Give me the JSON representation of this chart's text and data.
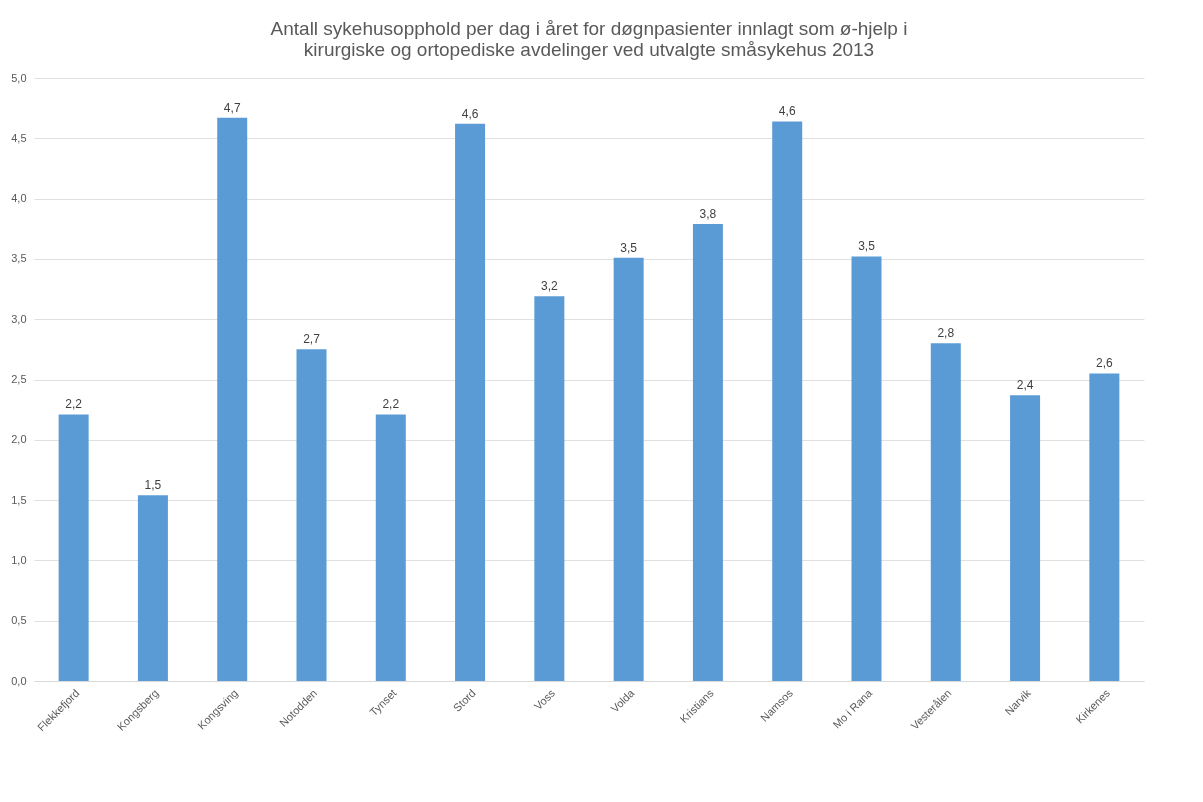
{
  "chart_data": {
    "type": "bar",
    "title": "Antall sykehusopphold  per dag i året for døgnpasienter innlagt som ø-hjelp i kirurgiske og ortopediske avdelinger ved utvalgte småsykehus 2013",
    "categories": [
      "Flekkefjord",
      "Kongsberg",
      "Kongsving",
      "Notodden",
      "Tynset",
      "Stord",
      "Voss",
      "Volda",
      "Kristians",
      "Namsos",
      "Mo i Rana",
      "Vesterålen",
      "Narvik",
      "Kirkenes"
    ],
    "values": [
      2.21,
      1.54,
      4.67,
      2.75,
      2.21,
      4.62,
      3.19,
      3.51,
      3.79,
      4.64,
      3.52,
      2.8,
      2.37,
      2.55
    ],
    "value_labels": [
      "2,2",
      "1,5",
      "4,7",
      "2,7",
      "2,2",
      "4,6",
      "3,2",
      "3,5",
      "3,8",
      "4,6",
      "3,5",
      "2,8",
      "2,4",
      "2,6"
    ],
    "color": "#5b9bd5",
    "ylim": [
      0,
      5
    ],
    "yticks": [
      {
        "value": 0,
        "label": "0,0"
      },
      {
        "value": 0.5,
        "label": "0,5"
      },
      {
        "value": 1,
        "label": "1,0"
      },
      {
        "value": 1.5,
        "label": "1,5"
      },
      {
        "value": 2,
        "label": "2,0"
      },
      {
        "value": 2.5,
        "label": "2,5"
      },
      {
        "value": 3,
        "label": "3,0"
      },
      {
        "value": 3.5,
        "label": "3,5"
      },
      {
        "value": 4,
        "label": "4,0"
      },
      {
        "value": 4.5,
        "label": "4,5"
      },
      {
        "value": 5,
        "label": "5,0"
      }
    ],
    "grid": "y"
  }
}
